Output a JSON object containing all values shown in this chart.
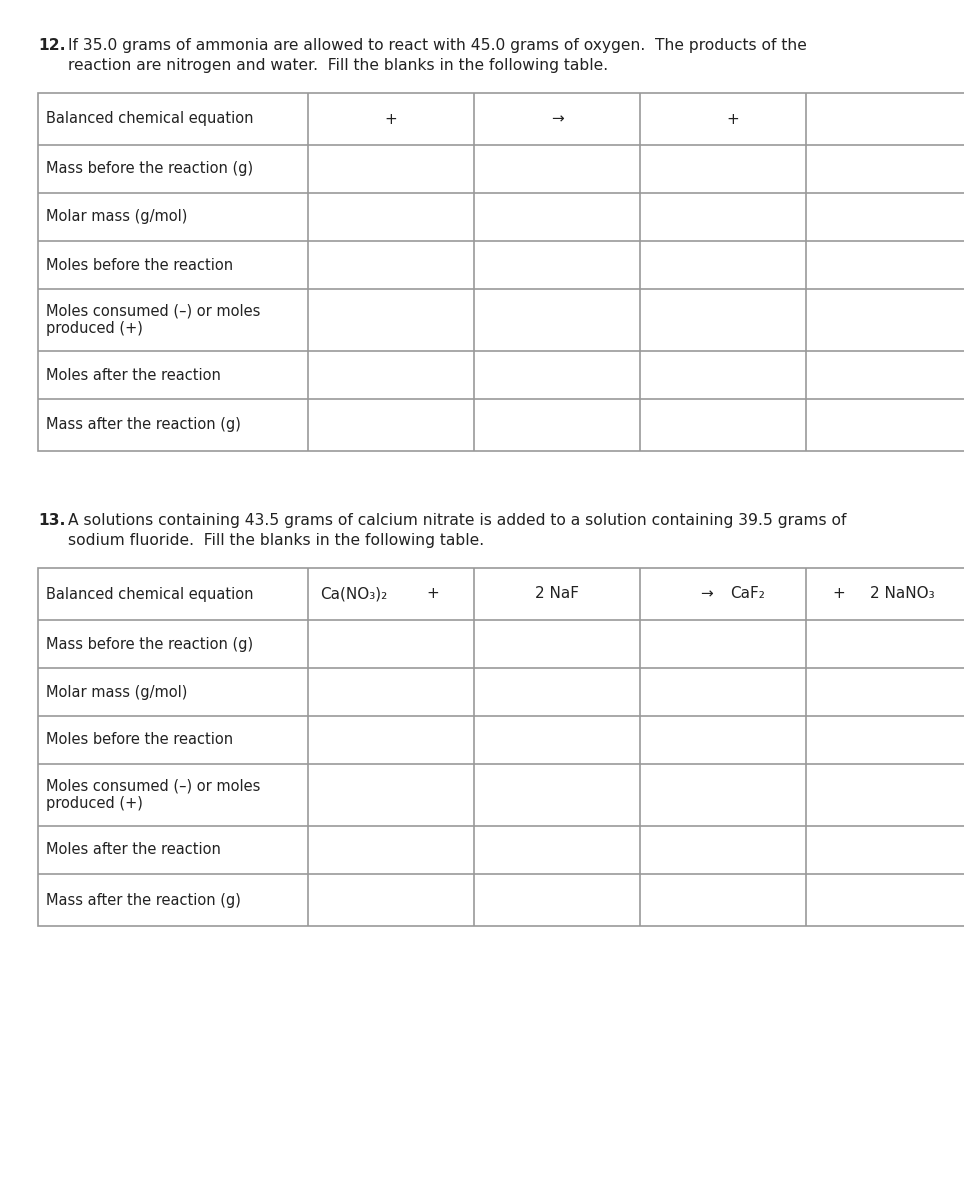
{
  "bg_color": "#ffffff",
  "text_color": "#222222",
  "border_color": "#999999",
  "q12_num": "12.",
  "q12_line1": "If 35.0 grams of ammonia are allowed to react with 45.0 grams of oxygen.  The products of the",
  "q12_line2": "reaction are nitrogen and water.  Fill the blanks in the following table.",
  "q13_num": "13.",
  "q13_line1": "A solutions containing 43.5 grams of calcium nitrate is added to a solution containing 39.5 grams of",
  "q13_line2": "sodium fluoride.  Fill the blanks in the following table.",
  "row_labels": [
    "Balanced chemical equation",
    "Mass before the reaction (g)",
    "Molar mass (g/mol)",
    "Moles before the reaction",
    "Moles consumed (–) or moles\nproduced (+)",
    "Moles after the reaction",
    "Mass after the reaction (g)"
  ],
  "q12_eq_plus1_col": 1,
  "q12_eq_arrow_col": 2,
  "q12_eq_plus2_col": 3,
  "q13_eq": [
    "Ca(NO₃)₂",
    "+",
    "2 NaF",
    "→",
    "CaF₂",
    "+",
    "2 NaNO₃"
  ]
}
